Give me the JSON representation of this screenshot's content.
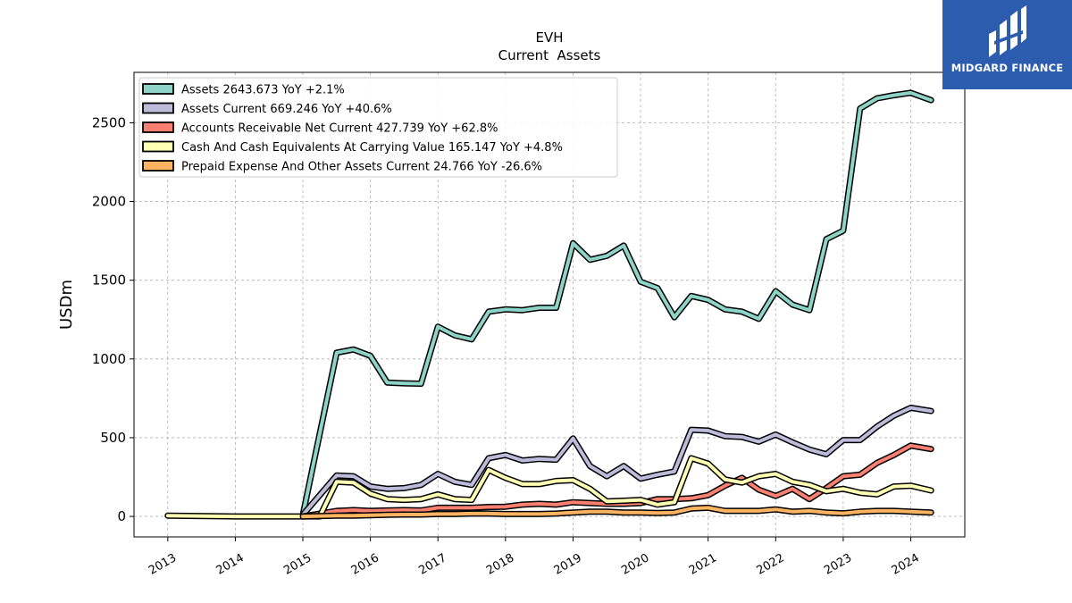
{
  "brand": {
    "name": "MIDGARD FINANCE",
    "bg_color": "#2b5cad"
  },
  "chart_data": {
    "type": "line",
    "title": "EVH",
    "subtitle": "Current  Assets",
    "ylabel": "USDm",
    "xlim": [
      2012.5,
      2024.8
    ],
    "ylim": [
      -130,
      2820
    ],
    "x_ticks": [
      2013,
      2014,
      2015,
      2016,
      2017,
      2018,
      2019,
      2020,
      2021,
      2022,
      2023,
      2024
    ],
    "y_ticks": [
      0,
      500,
      1000,
      1500,
      2000,
      2500
    ],
    "grid": true,
    "legend_position": "upper-left",
    "series": [
      {
        "name": "Assets  2643.673 YoY +2.1%",
        "color": "#8dd3c7",
        "x": [
          2015.0,
          2015.5,
          2015.75,
          2016.0,
          2016.25,
          2016.5,
          2016.75,
          2017.0,
          2017.25,
          2017.5,
          2017.75,
          2018.0,
          2018.25,
          2018.5,
          2018.75,
          2019.0,
          2019.25,
          2019.5,
          2019.75,
          2020.0,
          2020.25,
          2020.5,
          2020.75,
          2021.0,
          2021.25,
          2021.5,
          2021.75,
          2022.0,
          2022.25,
          2022.5,
          2022.75,
          2023.0,
          2023.25,
          2023.5,
          2023.75,
          2024.0,
          2024.3
        ],
        "values": [
          10,
          1040,
          1060,
          1020,
          850,
          845,
          843,
          1205,
          1150,
          1125,
          1300,
          1315,
          1310,
          1325,
          1325,
          1735,
          1630,
          1655,
          1720,
          1490,
          1450,
          1265,
          1400,
          1375,
          1315,
          1300,
          1255,
          1430,
          1345,
          1310,
          1760,
          1815,
          2590,
          2655,
          2675,
          2690,
          2643.673
        ]
      },
      {
        "name": "Assets Current  669.246 YoY +40.6%",
        "color": "#bebada",
        "x": [
          2015.0,
          2015.5,
          2015.75,
          2016.0,
          2016.25,
          2016.5,
          2016.75,
          2017.0,
          2017.25,
          2017.5,
          2017.75,
          2018.0,
          2018.25,
          2018.5,
          2018.75,
          2019.0,
          2019.25,
          2019.5,
          2019.75,
          2020.0,
          2020.25,
          2020.5,
          2020.75,
          2021.0,
          2021.25,
          2021.5,
          2021.75,
          2022.0,
          2022.25,
          2022.5,
          2022.75,
          2023.0,
          2023.25,
          2023.5,
          2023.75,
          2024.0,
          2024.3
        ],
        "values": [
          10,
          260,
          255,
          190,
          175,
          180,
          200,
          270,
          220,
          200,
          370,
          390,
          355,
          365,
          360,
          495,
          320,
          255,
          320,
          240,
          265,
          285,
          550,
          545,
          510,
          505,
          475,
          520,
          470,
          425,
          395,
          485,
          485,
          570,
          640,
          690,
          669.246
        ]
      },
      {
        "name": "Accounts Receivable Net Current  427.739 YoY +62.8%",
        "color": "#fb8072",
        "x": [
          2015.0,
          2015.5,
          2015.75,
          2016.0,
          2016.25,
          2016.5,
          2016.75,
          2017.0,
          2017.25,
          2017.5,
          2017.75,
          2018.0,
          2018.25,
          2018.5,
          2018.75,
          2019.0,
          2019.25,
          2019.5,
          2019.75,
          2020.0,
          2020.25,
          2020.5,
          2020.75,
          2021.0,
          2021.25,
          2021.5,
          2021.75,
          2022.0,
          2022.25,
          2022.5,
          2022.75,
          2023.0,
          2023.25,
          2023.5,
          2023.75,
          2024.0,
          2024.3
        ],
        "values": [
          0,
          35,
          40,
          35,
          38,
          40,
          38,
          55,
          55,
          55,
          60,
          62,
          75,
          80,
          75,
          90,
          85,
          80,
          80,
          85,
          110,
          110,
          115,
          135,
          195,
          245,
          170,
          130,
          175,
          110,
          180,
          255,
          265,
          340,
          390,
          450,
          427.739
        ]
      },
      {
        "name": "Cash And Cash Equivalents At Carrying Value  165.147 YoY +4.8%",
        "color": "#ffffb3",
        "x": [
          2013.0,
          2014.0,
          2015.0,
          2015.25,
          2015.5,
          2015.75,
          2016.0,
          2016.25,
          2016.5,
          2016.75,
          2017.0,
          2017.25,
          2017.5,
          2017.75,
          2018.0,
          2018.25,
          2018.5,
          2018.75,
          2019.0,
          2019.25,
          2019.5,
          2019.75,
          2020.0,
          2020.25,
          2020.5,
          2020.75,
          2021.0,
          2021.25,
          2021.5,
          2021.75,
          2022.0,
          2022.25,
          2022.5,
          2022.75,
          2023.0,
          2023.25,
          2023.5,
          2023.75,
          2024.0,
          2024.3
        ],
        "values": [
          5,
          0,
          0,
          0,
          220,
          215,
          145,
          110,
          105,
          110,
          140,
          110,
          105,
          295,
          245,
          205,
          205,
          225,
          230,
          175,
          95,
          100,
          105,
          75,
          90,
          370,
          335,
          235,
          215,
          255,
          270,
          220,
          200,
          160,
          175,
          150,
          140,
          190,
          195,
          165.147
        ]
      },
      {
        "name": "Prepaid Expense And Other Assets Current  24.766 YoY -26.6%",
        "color": "#fdb462",
        "x": [
          2015.0,
          2015.5,
          2015.75,
          2016.0,
          2016.25,
          2016.5,
          2016.75,
          2017.0,
          2017.25,
          2017.5,
          2017.75,
          2018.0,
          2018.25,
          2018.5,
          2018.75,
          2019.0,
          2019.25,
          2019.5,
          2019.75,
          2020.0,
          2020.25,
          2020.5,
          2020.75,
          2021.0,
          2021.25,
          2021.5,
          2021.75,
          2022.0,
          2022.25,
          2022.5,
          2022.75,
          2023.0,
          2023.25,
          2023.5,
          2023.75,
          2024.0,
          2024.3
        ],
        "values": [
          0,
          5,
          5,
          8,
          10,
          12,
          12,
          15,
          15,
          18,
          18,
          15,
          15,
          15,
          18,
          25,
          30,
          30,
          25,
          25,
          22,
          25,
          50,
          55,
          35,
          35,
          35,
          45,
          30,
          35,
          25,
          20,
          30,
          35,
          35,
          30,
          24.766
        ]
      }
    ]
  }
}
